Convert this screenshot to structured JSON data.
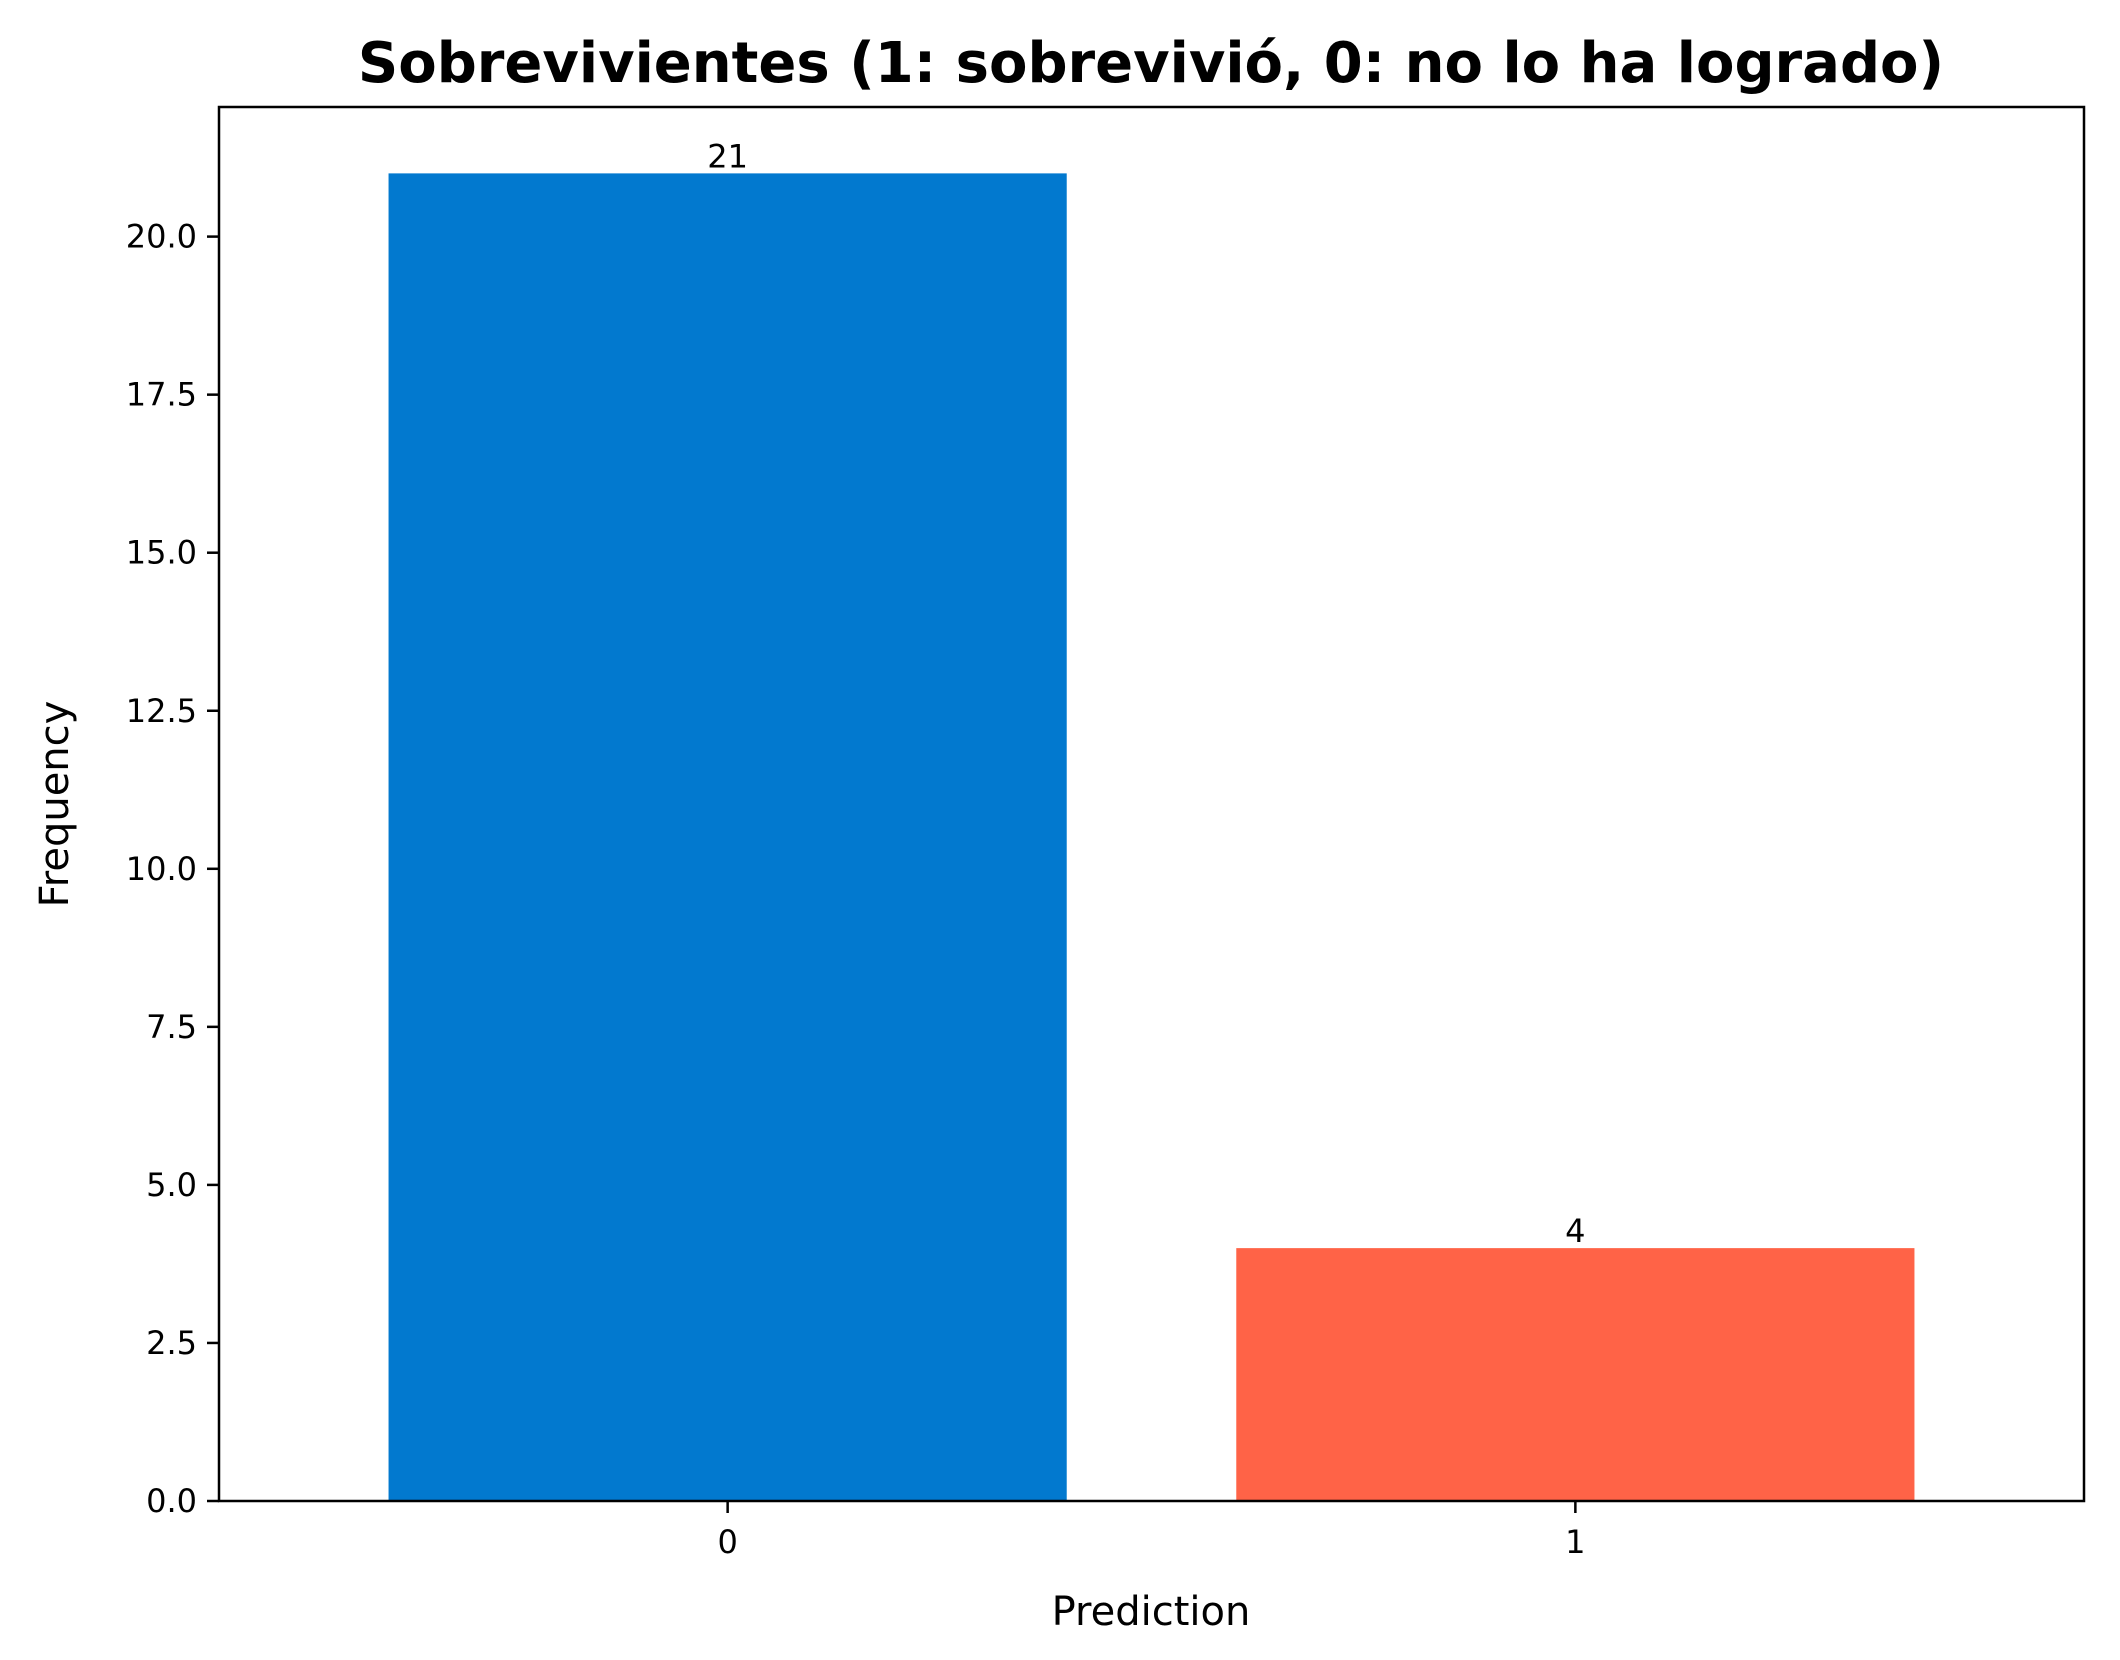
{
  "chart_data": {
    "type": "bar",
    "title": "Sobrevivientes (1: sobrevivió, 0: no lo ha logrado)",
    "xlabel": "Prediction",
    "ylabel": "Frequency",
    "categories": [
      "0",
      "1"
    ],
    "values": [
      21,
      4
    ],
    "data_labels": [
      "21",
      "4"
    ],
    "colors": [
      "#0279CF",
      "#FF6347"
    ],
    "ylim": [
      0,
      22.05
    ],
    "yticks": [
      0,
      2.5,
      5,
      7.5,
      10,
      12.5,
      15,
      17.5,
      20
    ],
    "ytick_labels": [
      "0.0",
      "2.5",
      "5.0",
      "7.5",
      "10.0",
      "12.5",
      "15.0",
      "17.5",
      "20.0"
    ],
    "grid": false,
    "legend": "none"
  }
}
